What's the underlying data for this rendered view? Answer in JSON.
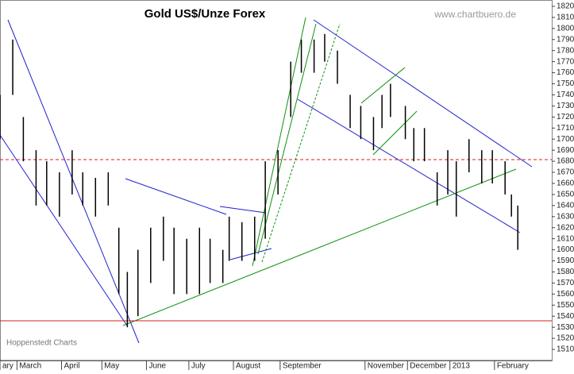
{
  "chart_data": {
    "type": "range-bar",
    "title": "Gold US$/Unze Forex",
    "subtitle": "www.chartbuero.de",
    "source": "Hoppenstedt Charts",
    "x": [
      0,
      6,
      11,
      17,
      22,
      28,
      34,
      39,
      45,
      51,
      56,
      60,
      65,
      71,
      77,
      82,
      88,
      94,
      99,
      105,
      108,
      114,
      120,
      125,
      131,
      137,
      142,
      148,
      153,
      159,
      165,
      170,
      176,
      180,
      184,
      191,
      195,
      200,
      206,
      211,
      215,
      221,
      227,
      232,
      238,
      241,
      244
    ],
    "high": [
      1740,
      1790,
      1720,
      1690,
      1680,
      1670,
      1690,
      1670,
      1665,
      1670,
      1620,
      1580,
      1600,
      1620,
      1630,
      1620,
      1610,
      1620,
      1610,
      1600,
      1630,
      1625,
      1630,
      1680,
      1690,
      1770,
      1790,
      1790,
      1795,
      1780,
      1740,
      1730,
      1720,
      1740,
      1750,
      1730,
      1710,
      1710,
      1670,
      1690,
      1680,
      1700,
      1690,
      1690,
      1680,
      1650,
      1640
    ],
    "low": [
      1700,
      1740,
      1680,
      1640,
      1640,
      1630,
      1650,
      1640,
      1630,
      1640,
      1560,
      1530,
      1540,
      1570,
      1590,
      1560,
      1560,
      1560,
      1570,
      1570,
      1590,
      1590,
      1590,
      1610,
      1650,
      1720,
      1760,
      1760,
      1770,
      1750,
      1710,
      1700,
      1690,
      1710,
      1720,
      1700,
      1680,
      1680,
      1640,
      1650,
      1630,
      1670,
      1660,
      1660,
      1650,
      1630,
      1600
    ],
    "color": "#000000",
    "xlim": [
      0,
      260
    ],
    "xticks": [
      {
        "value": 0,
        "label": "ary"
      },
      {
        "value": 8,
        "label": "March"
      },
      {
        "value": 29,
        "label": "April"
      },
      {
        "value": 48,
        "label": "May"
      },
      {
        "value": 69,
        "label": "June"
      },
      {
        "value": 89,
        "label": "July"
      },
      {
        "value": 110,
        "label": "August"
      },
      {
        "value": 132,
        "label": "September"
      },
      {
        "value": 172,
        "label": "November"
      },
      {
        "value": 192,
        "label": "December"
      },
      {
        "value": 212,
        "label": "2013"
      },
      {
        "value": 233,
        "label": "February"
      }
    ],
    "ylim": [
      1505,
      1825
    ],
    "yticks": [
      1510,
      1520,
      1530,
      1540,
      1550,
      1560,
      1570,
      1580,
      1590,
      1600,
      1610,
      1620,
      1630,
      1640,
      1650,
      1660,
      1670,
      1680,
      1690,
      1700,
      1710,
      1720,
      1730,
      1740,
      1750,
      1760,
      1770,
      1780,
      1790,
      1800,
      1810,
      1820
    ]
  }
}
